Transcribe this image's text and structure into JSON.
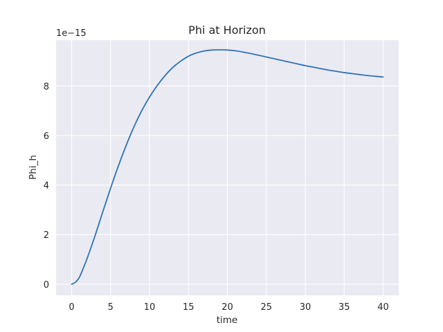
{
  "chart_data": {
    "type": "line",
    "title": "Phi at Horizon",
    "xlabel": "time",
    "ylabel": "Phi_h",
    "y_offset_label": "1e−15",
    "xlim": [
      -2,
      42
    ],
    "ylim": [
      -0.45,
      9.85
    ],
    "x_ticks": [
      0,
      5,
      10,
      15,
      20,
      25,
      30,
      35,
      40
    ],
    "y_ticks": [
      0,
      2,
      4,
      6,
      8
    ],
    "x_tick_labels": [
      "0",
      "5",
      "10",
      "15",
      "20",
      "25",
      "30",
      "35",
      "40"
    ],
    "y_tick_labels": [
      "0",
      "2",
      "4",
      "6",
      "8"
    ],
    "grid": true,
    "colors": {
      "plot_background": "#eaeaf2",
      "grid": "#ffffff",
      "line": "#2c73b2"
    },
    "series": [
      {
        "x": [
          0,
          0.5,
          1,
          1.5,
          2,
          3,
          4,
          5,
          6,
          7,
          8,
          9,
          10,
          11,
          12,
          13,
          14,
          15,
          16,
          17,
          18,
          19,
          20,
          21,
          22,
          23,
          24,
          25,
          26,
          27,
          28,
          29,
          30,
          31,
          32,
          33,
          34,
          35,
          36,
          37,
          38,
          39,
          40
        ],
        "values": [
          0,
          0.08,
          0.28,
          0.65,
          1.05,
          1.95,
          2.92,
          3.87,
          4.77,
          5.6,
          6.35,
          7.0,
          7.55,
          8.02,
          8.42,
          8.75,
          9.0,
          9.2,
          9.33,
          9.41,
          9.45,
          9.46,
          9.45,
          9.42,
          9.37,
          9.31,
          9.24,
          9.17,
          9.1,
          9.03,
          8.96,
          8.89,
          8.82,
          8.76,
          8.7,
          8.64,
          8.59,
          8.54,
          8.5,
          8.46,
          8.42,
          8.39,
          8.36
        ]
      }
    ]
  }
}
